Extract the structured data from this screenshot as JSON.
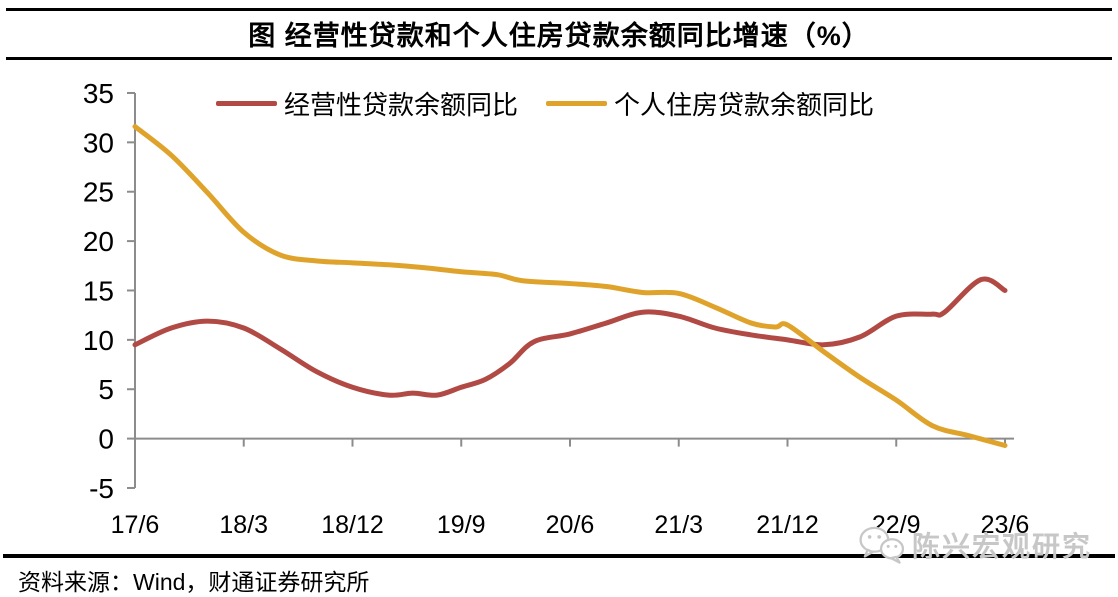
{
  "title": "图 经营性贷款和个人住房贷款余额同比增速（%）",
  "source_note": "资料来源：Wind，财通证券研究所",
  "watermark": {
    "icon": "wechat-icon",
    "label": "陈兴宏观研究"
  },
  "colors": {
    "operating": "#B14A44",
    "housing": "#DFA32B",
    "axis": "#8C8C8C",
    "frame": "#000000",
    "watermark": "#C7C7C7"
  },
  "chart_data": {
    "type": "line",
    "title": "图 经营性贷款和个人住房贷款余额同比增速（%）",
    "xlabel": "",
    "ylabel": "",
    "ylim": [
      -5,
      35
    ],
    "ytick_interval": 5,
    "yticks": [
      35,
      30,
      25,
      20,
      15,
      10,
      5,
      0,
      -5
    ],
    "xtick_labels": [
      "17/6",
      "18/3",
      "18/12",
      "19/9",
      "20/6",
      "21/3",
      "21/12",
      "22/9",
      "23/6"
    ],
    "x_axis_note": "monthly timeline from 2017/6 to 2023/6, tick labels every 9 months (YY/M)",
    "grid": "off, zero baseline drawn",
    "legend_position": "top-center",
    "series": [
      {
        "name": "经营性贷款余额同比",
        "color": "#B14A44",
        "points": [
          [
            "17/6",
            9.5
          ],
          [
            "17/9",
            11.2
          ],
          [
            "17/12",
            11.9
          ],
          [
            "18/3",
            11.2
          ],
          [
            "18/6",
            9.1
          ],
          [
            "18/9",
            6.8
          ],
          [
            "18/12",
            5.2
          ],
          [
            "19/3",
            4.4
          ],
          [
            "19/5",
            4.6
          ],
          [
            "19/7",
            4.4
          ],
          [
            "19/9",
            5.2
          ],
          [
            "19/11",
            6.0
          ],
          [
            "20/1",
            7.6
          ],
          [
            "20/3",
            9.8
          ],
          [
            "20/6",
            10.6
          ],
          [
            "20/9",
            11.7
          ],
          [
            "20/12",
            12.8
          ],
          [
            "21/3",
            12.4
          ],
          [
            "21/6",
            11.2
          ],
          [
            "21/9",
            10.5
          ],
          [
            "21/12",
            10.0
          ],
          [
            "22/3",
            9.5
          ],
          [
            "22/6",
            10.3
          ],
          [
            "22/9",
            12.4
          ],
          [
            "22/12",
            12.6
          ],
          [
            "23/1",
            12.8
          ],
          [
            "23/4",
            16.1
          ],
          [
            "23/6",
            15.0
          ]
        ]
      },
      {
        "name": "个人住房贷款余额同比",
        "color": "#DFA32B",
        "points": [
          [
            "17/6",
            31.6
          ],
          [
            "17/9",
            28.7
          ],
          [
            "17/12",
            24.9
          ],
          [
            "18/3",
            20.9
          ],
          [
            "18/6",
            18.6
          ],
          [
            "18/9",
            18.0
          ],
          [
            "18/12",
            17.8
          ],
          [
            "19/3",
            17.6
          ],
          [
            "19/6",
            17.3
          ],
          [
            "19/9",
            16.9
          ],
          [
            "19/12",
            16.6
          ],
          [
            "20/2",
            16.0
          ],
          [
            "20/6",
            15.7
          ],
          [
            "20/9",
            15.4
          ],
          [
            "20/12",
            14.8
          ],
          [
            "21/3",
            14.7
          ],
          [
            "21/6",
            13.3
          ],
          [
            "21/9",
            11.7
          ],
          [
            "21/11",
            11.3
          ],
          [
            "21/12",
            11.5
          ],
          [
            "22/3",
            8.8
          ],
          [
            "22/6",
            6.2
          ],
          [
            "22/9",
            3.9
          ],
          [
            "22/12",
            1.3
          ],
          [
            "23/3",
            0.3
          ],
          [
            "23/6",
            -0.7
          ]
        ]
      }
    ]
  }
}
